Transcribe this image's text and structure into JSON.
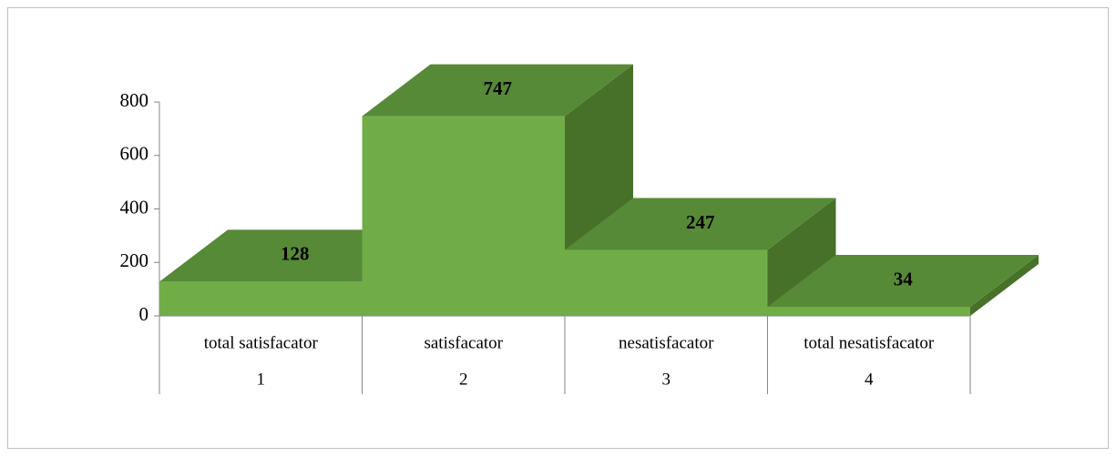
{
  "chart_data": {
    "type": "bar3d",
    "categories": [
      "total satisfacator",
      "satisfacator",
      "nesatisfacator",
      "total nesatisfacator"
    ],
    "category_groups": [
      "1",
      "2",
      "3",
      "4"
    ],
    "values": [
      128,
      747,
      247,
      34
    ],
    "colors": {
      "front": "#70ad47",
      "top": "#578a36",
      "side": "#477129"
    },
    "ylim": [
      0,
      800
    ],
    "yticks": [
      0,
      200,
      400,
      600,
      800
    ]
  }
}
